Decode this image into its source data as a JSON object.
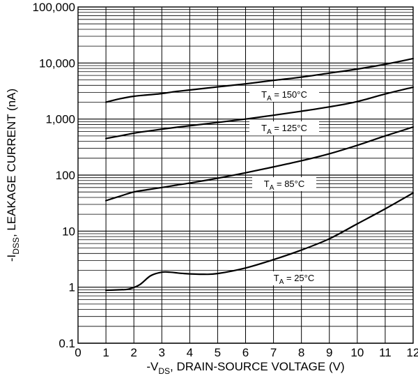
{
  "chart_data": {
    "type": "line",
    "xlabel": {
      "prefix": "-V",
      "sub": "DS",
      "suffix": ", DRAIN-SOURCE VOLTAGE (V)"
    },
    "ylabel": {
      "prefix": "-I",
      "sub": "DSS",
      "suffix": ", LEAKAGE CURRENT (nA)"
    },
    "xlim": [
      0,
      12
    ],
    "ylim": [
      0.1,
      100000
    ],
    "yscale": "log",
    "grid": true,
    "x_ticks": [
      0,
      1,
      2,
      3,
      4,
      5,
      6,
      7,
      8,
      9,
      10,
      11,
      12
    ],
    "y_ticks": [
      {
        "value": 0.1,
        "label": "0.1"
      },
      {
        "value": 1,
        "label": "1"
      },
      {
        "value": 10,
        "label": "10"
      },
      {
        "value": 100,
        "label": "100"
      },
      {
        "value": 1000,
        "label": "1,000"
      },
      {
        "value": 10000,
        "label": "10,000"
      },
      {
        "value": 100000,
        "label": "100,000"
      }
    ],
    "series": [
      {
        "name": "T_A = 150°C",
        "label": {
          "main": "T",
          "sub": "A",
          "rest": " = 150°C"
        },
        "x": [
          1,
          1.5,
          2,
          2.5,
          3,
          3.5,
          4,
          5,
          6,
          7,
          8,
          9,
          10,
          11,
          12
        ],
        "y": [
          2000,
          2300,
          2550,
          2700,
          2850,
          3100,
          3300,
          3750,
          4250,
          4900,
          5600,
          6600,
          7800,
          9500,
          12000
        ]
      },
      {
        "name": "T_A = 125°C",
        "label": {
          "main": "T",
          "sub": "A",
          "rest": " = 125°C"
        },
        "x": [
          1,
          1.5,
          2,
          2.5,
          3,
          3.5,
          4,
          5,
          6,
          7,
          8,
          9,
          10,
          11,
          12
        ],
        "y": [
          450,
          500,
          560,
          610,
          660,
          710,
          760,
          870,
          1000,
          1170,
          1380,
          1650,
          2050,
          2800,
          3700
        ]
      },
      {
        "name": "T_A = 85°C",
        "label": {
          "main": "T",
          "sub": "A",
          "rest": " = 85°C"
        },
        "x": [
          1,
          1.5,
          2,
          2.5,
          3,
          3.5,
          4,
          5,
          6,
          7,
          8,
          9,
          10,
          11,
          12
        ],
        "y": [
          35,
          42,
          50,
          55,
          60,
          66,
          72,
          88,
          110,
          140,
          180,
          240,
          340,
          500,
          720
        ]
      },
      {
        "name": "T_A = 25°C",
        "label": {
          "main": "T",
          "sub": "A",
          "rest": " = 25°C"
        },
        "x": [
          1,
          1.5,
          1.8,
          2.2,
          2.6,
          3,
          3.3,
          3.8,
          4.5,
          5,
          6,
          7,
          8,
          9,
          10,
          11,
          12
        ],
        "y": [
          0.88,
          0.9,
          0.92,
          1.1,
          1.6,
          1.85,
          1.85,
          1.75,
          1.7,
          1.75,
          2.2,
          3.1,
          4.6,
          7.3,
          13.5,
          25,
          48
        ]
      }
    ]
  }
}
